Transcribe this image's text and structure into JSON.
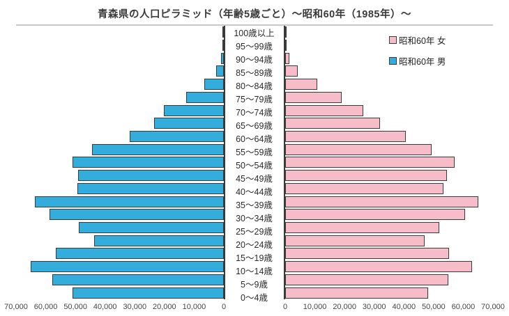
{
  "title": "青森県の人口ピラミッド（年齢5歳ごと）～昭和60年（1985年）～",
  "legend": {
    "female_label": "昭和60年 女",
    "male_label": "昭和60年 男"
  },
  "colors": {
    "male_bar": "#33AEDC",
    "female_bar": "#F6BDC8",
    "bar_border": "#3b3b3b",
    "axis_line": "#3a3a3a",
    "frame_line": "#c9c9c9",
    "text": "#2b2b2b"
  },
  "chart_data": {
    "type": "bar",
    "subtype": "population-pyramid",
    "title": "青森県の人口ピラミッド（年齢5歳ごと）～昭和60年（1985年）～",
    "categories_top_to_bottom": [
      "100歳以上",
      "95～99歳",
      "90～94歳",
      "85～89歳",
      "80～84歳",
      "75～79歳",
      "70～74歳",
      "65～69歳",
      "60～64歳",
      "55～59歳",
      "50～54歳",
      "45～49歳",
      "40～44歳",
      "35～39歳",
      "30～34歳",
      "25～29歳",
      "20～24歳",
      "15～19歳",
      "10～14歳",
      "5～9歳",
      "0～4歳"
    ],
    "series": [
      {
        "name": "昭和60年 男",
        "side": "left",
        "values_top_to_bottom": [
          50,
          200,
          900,
          2500,
          6500,
          12700,
          20100,
          23400,
          31800,
          44500,
          50900,
          49200,
          49400,
          63700,
          58800,
          48900,
          43800,
          56600,
          65000,
          57800,
          51000
        ]
      },
      {
        "name": "昭和60年 女",
        "side": "right",
        "values_top_to_bottom": [
          100,
          400,
          1300,
          4300,
          10800,
          19100,
          26300,
          31900,
          40700,
          49400,
          57000,
          54600,
          53400,
          65100,
          60700,
          52000,
          46900,
          55200,
          62900,
          55000,
          48100
        ]
      }
    ],
    "xlim": [
      0,
      70000
    ],
    "x_ticks_left_axis": [
      "70,000",
      "60,000",
      "50,000",
      "40,000",
      "30,000",
      "20,000",
      "10,000",
      "0"
    ],
    "x_ticks_right_axis": [
      "0",
      "10,000",
      "20,000",
      "30,000",
      "40,000",
      "50,000",
      "60,000",
      "70,000"
    ],
    "grid": false,
    "legend_position": "top-right"
  }
}
